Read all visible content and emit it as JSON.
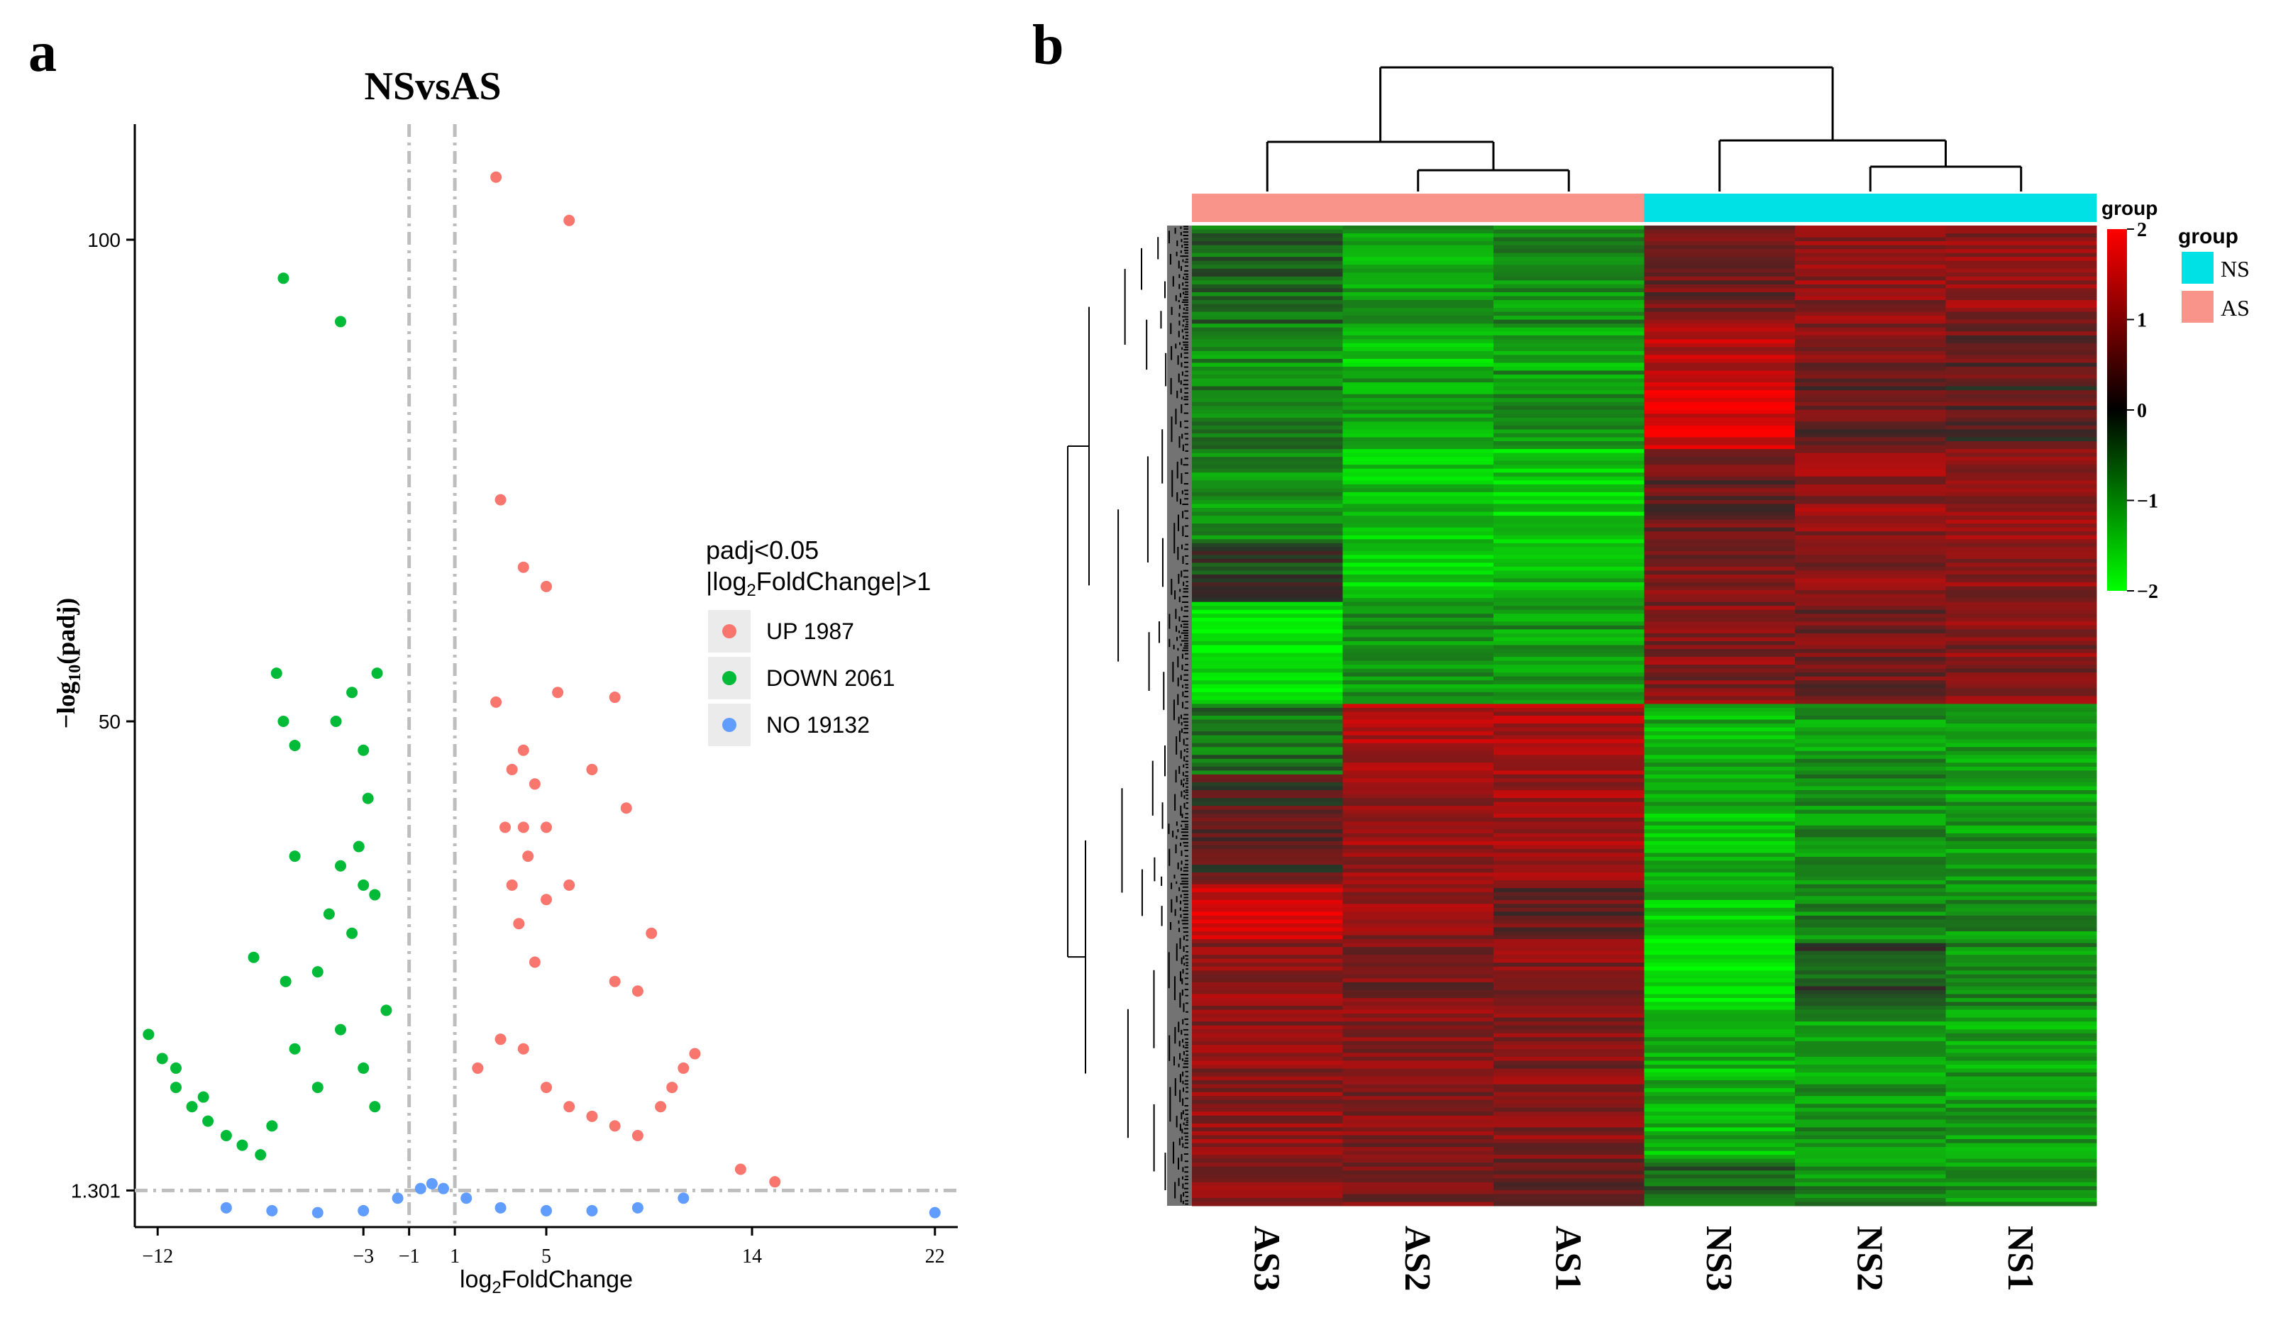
{
  "panels": {
    "a": {
      "label": "a",
      "chart_data": {
        "type": "scatter",
        "title": "NSvsAS",
        "xlabel": "log2FoldChange",
        "ylabel": "−log10(padj)",
        "xlim": [
          -13,
          23
        ],
        "ylim": [
          -2.5,
          112
        ],
        "xticks": [
          -12,
          -3,
          -1,
          1,
          5,
          14,
          22
        ],
        "yticks": [
          1.301,
          50,
          100
        ],
        "ytick_labels": [
          "1.301",
          "50",
          "100"
        ],
        "threshold_lines": {
          "x": [
            -1,
            1
          ],
          "y": 1.301
        },
        "grid": false,
        "legend_position": "right",
        "legend_title_lines": [
          "padj<0.05",
          "|log2FoldChange|>1"
        ],
        "series": [
          {
            "name": "UP 1987",
            "color": "#F8766D",
            "points": [
              [
                2.8,
                106.5
              ],
              [
                6,
                102
              ],
              [
                3,
                73
              ],
              [
                4,
                66
              ],
              [
                5,
                64
              ],
              [
                2.8,
                52
              ],
              [
                4,
                47
              ],
              [
                8,
                52.5
              ],
              [
                5.5,
                53
              ],
              [
                8.5,
                41
              ],
              [
                4.5,
                43.5
              ],
              [
                3.5,
                45
              ],
              [
                7,
                45
              ],
              [
                3.2,
                39
              ],
              [
                4,
                39
              ],
              [
                5,
                39
              ],
              [
                3.5,
                33
              ],
              [
                4.2,
                36
              ],
              [
                6,
                33
              ],
              [
                5,
                31.5
              ],
              [
                3.8,
                29
              ],
              [
                4.5,
                25
              ],
              [
                9.6,
                28
              ],
              [
                9,
                22
              ],
              [
                8,
                23
              ],
              [
                13.5,
                3.5
              ],
              [
                15,
                2.2
              ],
              [
                2,
                14
              ],
              [
                3,
                17
              ],
              [
                4,
                16
              ],
              [
                5,
                12
              ],
              [
                6,
                10
              ],
              [
                7,
                9
              ],
              [
                8,
                8
              ],
              [
                9,
                7
              ],
              [
                10,
                10
              ],
              [
                10.5,
                12
              ],
              [
                11,
                14
              ],
              [
                11.5,
                15.5
              ]
            ]
          },
          {
            "name": "DOWN 2061",
            "color": "#00BA38",
            "points": [
              [
                -6.5,
                96
              ],
              [
                -4,
                91.5
              ],
              [
                -6.8,
                55
              ],
              [
                -2.4,
                55
              ],
              [
                -3.5,
                53
              ],
              [
                -6.5,
                50
              ],
              [
                -4.2,
                50
              ],
              [
                -6,
                47.5
              ],
              [
                -3,
                47
              ],
              [
                -2.8,
                42
              ],
              [
                -3.2,
                37
              ],
              [
                -6,
                36
              ],
              [
                -4,
                35
              ],
              [
                -3,
                33
              ],
              [
                -2.5,
                32
              ],
              [
                -4.5,
                30
              ],
              [
                -7.8,
                25.5
              ],
              [
                -6.4,
                23
              ],
              [
                -12.4,
                17.5
              ],
              [
                -11.8,
                15
              ],
              [
                -11.2,
                12
              ],
              [
                -10.5,
                10
              ],
              [
                -9.8,
                8.5
              ],
              [
                -9,
                7
              ],
              [
                -8.3,
                6
              ],
              [
                -7.5,
                5
              ],
              [
                -11.2,
                14
              ],
              [
                -10,
                11
              ],
              [
                -3.5,
                28
              ],
              [
                -5,
                24
              ],
              [
                -2,
                20
              ],
              [
                -4,
                18
              ],
              [
                -6,
                16
              ],
              [
                -3,
                14
              ],
              [
                -5,
                12
              ],
              [
                -2.5,
                10
              ],
              [
                -7,
                8
              ]
            ]
          },
          {
            "name": "NO 19132",
            "color": "#619CFF",
            "points": [
              [
                -9,
                -0.5
              ],
              [
                -7,
                -0.8
              ],
              [
                -5,
                -1
              ],
              [
                -3,
                -0.8
              ],
              [
                -1.5,
                0.5
              ],
              [
                -0.5,
                1.5
              ],
              [
                0,
                2
              ],
              [
                0.5,
                1.5
              ],
              [
                1.5,
                0.5
              ],
              [
                3,
                -0.5
              ],
              [
                5,
                -0.8
              ],
              [
                7,
                -0.8
              ],
              [
                9,
                -0.5
              ],
              [
                11,
                0.5
              ],
              [
                22,
                -1
              ]
            ]
          }
        ]
      }
    },
    "b": {
      "label": "b",
      "chart_data": {
        "type": "heatmap",
        "columns": [
          "AS3",
          "AS2",
          "AS1",
          "NS3",
          "NS2",
          "NS1"
        ],
        "column_groups": [
          "AS",
          "AS",
          "AS",
          "NS",
          "NS",
          "NS"
        ],
        "group_colors": {
          "AS": "#F8948A",
          "NS": "#00E1E6"
        },
        "annotation_label": "group",
        "legend_title": "group",
        "legend_items": [
          "NS",
          "AS"
        ],
        "colorbar": {
          "min": -2,
          "max": 2,
          "ticks": [
            2,
            1,
            0,
            -1,
            -2
          ],
          "low_color": "#00FF00",
          "mid_color": "#000000",
          "high_color": "#FF0000"
        },
        "column_dendrogram": true,
        "row_dendrogram": true,
        "row_blocks": [
          {
            "rows": 25,
            "values": [
              -0.5,
              -1.1,
              -0.9,
              0.6,
              0.9,
              0.9
            ]
          },
          {
            "rows": 12,
            "values": [
              -0.9,
              -1.4,
              -1.2,
              1.3,
              0.7,
              0.5
            ]
          },
          {
            "rows": 20,
            "values": [
              -0.8,
              -1.1,
              -1.0,
              1.6,
              0.5,
              0.4
            ]
          },
          {
            "rows": 24,
            "values": [
              -0.9,
              -1.4,
              -1.5,
              0.5,
              0.9,
              1.0
            ]
          },
          {
            "rows": 15,
            "values": [
              -0.2,
              -1.5,
              -1.3,
              0.7,
              0.8,
              0.9
            ]
          },
          {
            "rows": 26,
            "values": [
              -1.8,
              -0.9,
              -1.0,
              0.8,
              0.6,
              0.8
            ]
          },
          {
            "rows": 18,
            "values": [
              -0.6,
              1.2,
              1.2,
              -1.2,
              -1.0,
              -1.1
            ]
          },
          {
            "rows": 28,
            "values": [
              0.3,
              1.0,
              1.1,
              -1.3,
              -0.9,
              -1.0
            ]
          },
          {
            "rows": 14,
            "values": [
              1.6,
              0.9,
              0.5,
              -1.4,
              -0.8,
              -0.9
            ]
          },
          {
            "rows": 18,
            "values": [
              0.9,
              0.7,
              0.8,
              -1.8,
              -0.4,
              -0.9
            ]
          },
          {
            "rows": 38,
            "values": [
              0.9,
              0.8,
              0.8,
              -1.3,
              -1.0,
              -1.1
            ]
          },
          {
            "rows": 12,
            "values": [
              0.8,
              0.7,
              0.6,
              -0.5,
              -0.9,
              -1.0
            ]
          }
        ]
      }
    }
  }
}
